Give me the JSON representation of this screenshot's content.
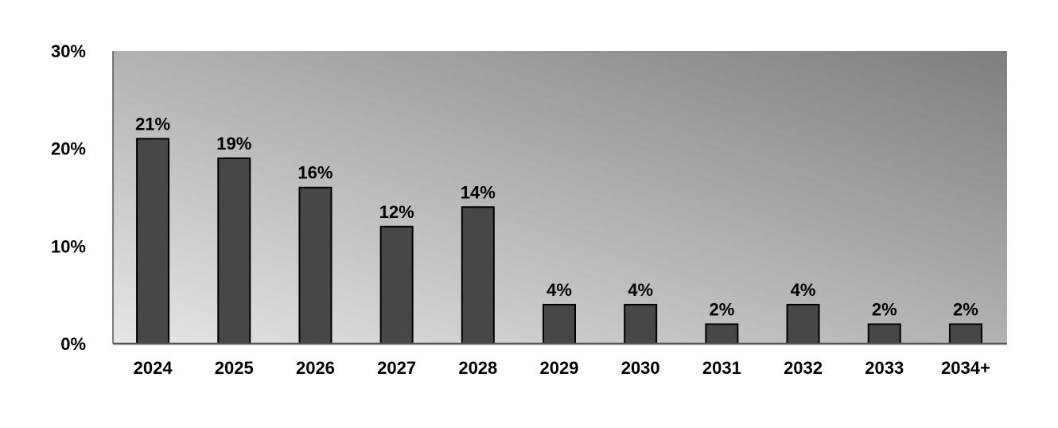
{
  "chart_data": {
    "type": "bar",
    "title": "",
    "xlabel": "",
    "ylabel": "",
    "categories": [
      "2024",
      "2025",
      "2026",
      "2027",
      "2028",
      "2029",
      "2030",
      "2031",
      "2032",
      "2033",
      "2034+"
    ],
    "values": [
      21,
      19,
      16,
      12,
      14,
      4,
      4,
      2,
      4,
      2,
      2
    ],
    "data_labels": [
      "21%",
      "19%",
      "16%",
      "12%",
      "14%",
      "4%",
      "4%",
      "2%",
      "4%",
      "2%",
      "2%"
    ],
    "ylim": [
      0,
      30
    ],
    "yticks": [
      0,
      10,
      20,
      30
    ],
    "ytick_labels": [
      "0%",
      "10%",
      "20%",
      "30%"
    ],
    "grid": false,
    "legend": "none",
    "colors": {
      "bar": "#474747",
      "bar_edge": "#000000",
      "plot_gradient_light": "#e6e6e6",
      "plot_gradient_dark": "#7e7e7e",
      "axis": "#555555"
    }
  }
}
